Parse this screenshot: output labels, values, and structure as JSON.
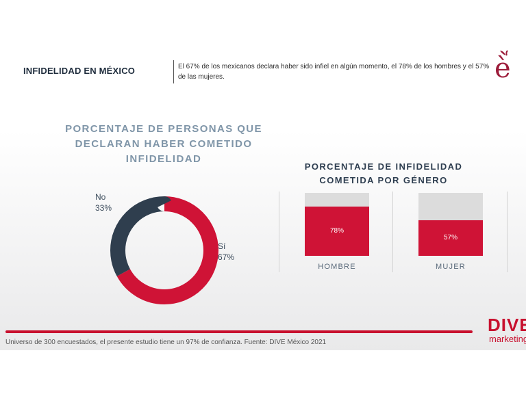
{
  "header": {
    "title": "INFIDELIDAD EN MÉXICO",
    "note": "El 67% de los mexicanos declara haber sido infiel en algún momento, el 78% de los hombres y el 57% de las mujeres."
  },
  "brand": {
    "icon": "apple-e-logo-icon",
    "color": "#9c1c3a",
    "icon_letter": "è"
  },
  "colors": {
    "accent": "#cf1336",
    "dark": "#2f3e4e",
    "track": "#dcdcdc"
  },
  "chart_data": [
    {
      "type": "pie",
      "title": "PORCENTAJE DE PERSONAS QUE DECLARAN HABER COMETIDO INFIDELIDAD",
      "categories": [
        "Sí",
        "No"
      ],
      "values": [
        67,
        33
      ],
      "value_labels": [
        "67%",
        "33%"
      ],
      "colors": [
        "#cf1336",
        "#2f3e4e"
      ],
      "style": "donut"
    },
    {
      "type": "bar",
      "title": "PORCENTAJE DE INFIDELIDAD COMETIDA POR GÉNERO",
      "categories": [
        "HOMBRE",
        "MUJER",
        ""
      ],
      "values": [
        78,
        57,
        null
      ],
      "value_labels": [
        "78%",
        "57%",
        ""
      ],
      "ylim": [
        0,
        100
      ],
      "color": "#cf1336",
      "background_track": true
    }
  ],
  "footer": {
    "note": "Universo de 300 encuestados, el presente estudio tiene un 97% de confianza. Fuente: DIVE México 2021",
    "logo_main": "DIVE",
    "logo_sub": "marketing"
  }
}
